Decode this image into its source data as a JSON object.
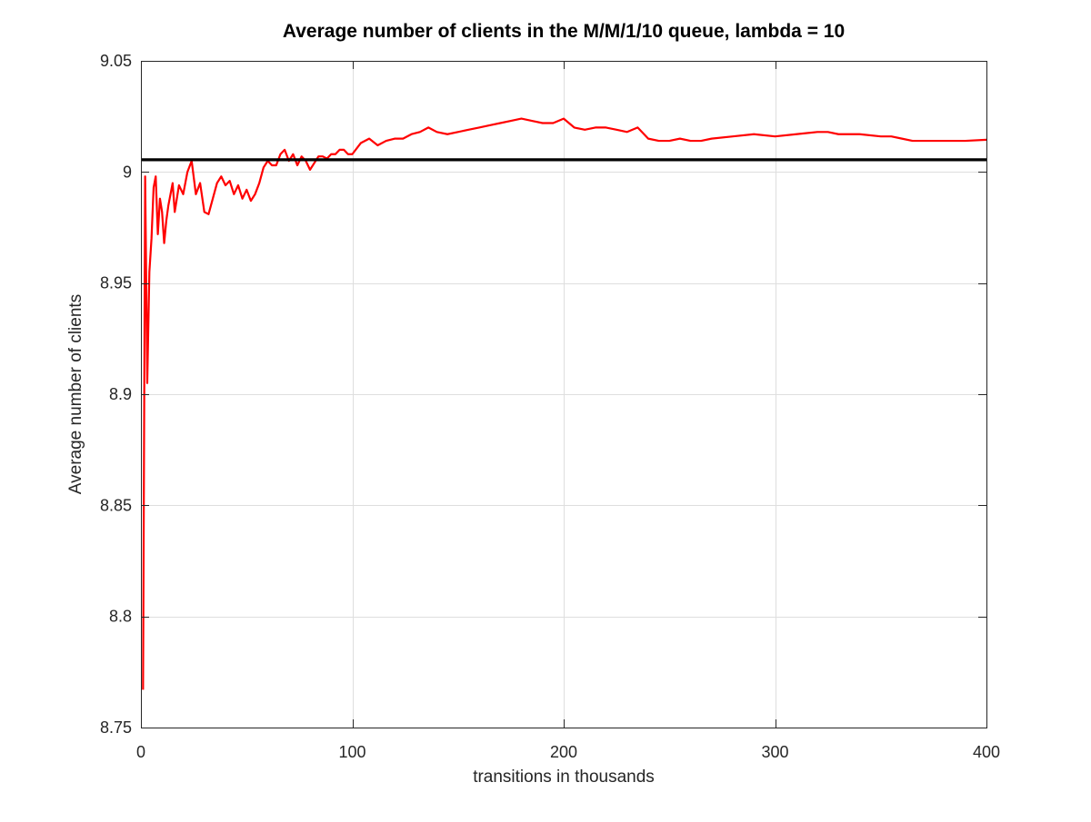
{
  "chart_data": {
    "type": "line",
    "title": "Average number of clients in the M/M/1/10 queue, lambda = 10",
    "xlabel": "transitions in thousands",
    "ylabel": "Average number of clients",
    "xlim": [
      0,
      400
    ],
    "ylim": [
      8.75,
      9.05
    ],
    "xticks": [
      0,
      100,
      200,
      300,
      400
    ],
    "xtick_labels": [
      "0",
      "100",
      "200",
      "300",
      "400"
    ],
    "yticks": [
      8.75,
      8.8,
      8.85,
      8.9,
      8.95,
      9.0,
      9.05
    ],
    "ytick_labels": [
      "8.75",
      "8.8",
      "8.85",
      "8.9",
      "8.95",
      "9",
      "9.05"
    ],
    "grid": true,
    "series": [
      {
        "color": "#ff0000",
        "x": [
          1,
          2,
          3,
          4,
          5,
          6,
          7,
          8,
          9,
          10,
          11,
          12,
          13,
          14,
          15,
          16,
          18,
          20,
          22,
          24,
          26,
          28,
          30,
          32,
          34,
          36,
          38,
          40,
          42,
          44,
          46,
          48,
          50,
          52,
          54,
          56,
          58,
          60,
          62,
          64,
          66,
          68,
          70,
          72,
          74,
          76,
          78,
          80,
          82,
          84,
          86,
          88,
          90,
          92,
          94,
          96,
          98,
          100,
          104,
          108,
          112,
          116,
          120,
          124,
          128,
          132,
          136,
          140,
          145,
          150,
          155,
          160,
          165,
          170,
          175,
          180,
          185,
          190,
          195,
          200,
          205,
          210,
          215,
          220,
          225,
          230,
          235,
          240,
          245,
          250,
          255,
          260,
          265,
          270,
          280,
          290,
          300,
          310,
          320,
          325,
          330,
          340,
          350,
          355,
          360,
          365,
          370,
          380,
          390,
          400
        ],
        "y": [
          8.767,
          8.998,
          8.905,
          8.955,
          8.97,
          8.993,
          8.998,
          8.972,
          8.988,
          8.982,
          8.968,
          8.978,
          8.985,
          8.99,
          8.995,
          8.982,
          8.994,
          8.99,
          9.0,
          9.005,
          8.99,
          8.995,
          8.982,
          8.981,
          8.988,
          8.995,
          8.998,
          8.994,
          8.996,
          8.99,
          8.994,
          8.988,
          8.992,
          8.987,
          8.99,
          8.995,
          9.002,
          9.005,
          9.003,
          9.003,
          9.008,
          9.01,
          9.005,
          9.008,
          9.003,
          9.007,
          9.005,
          9.001,
          9.004,
          9.007,
          9.007,
          9.006,
          9.008,
          9.008,
          9.01,
          9.01,
          9.008,
          9.008,
          9.013,
          9.015,
          9.012,
          9.014,
          9.015,
          9.015,
          9.017,
          9.018,
          9.02,
          9.018,
          9.017,
          9.018,
          9.019,
          9.02,
          9.021,
          9.022,
          9.023,
          9.024,
          9.023,
          9.022,
          9.022,
          9.024,
          9.02,
          9.019,
          9.02,
          9.02,
          9.019,
          9.018,
          9.02,
          9.015,
          9.014,
          9.014,
          9.015,
          9.014,
          9.014,
          9.015,
          9.016,
          9.017,
          9.016,
          9.017,
          9.018,
          9.018,
          9.017,
          9.017,
          9.016,
          9.016,
          9.015,
          9.014,
          9.014,
          9.014,
          9.014,
          9.0145
        ]
      },
      {
        "color": "#000000",
        "x": [
          0,
          400
        ],
        "y": [
          9.0055,
          9.0055
        ]
      }
    ]
  }
}
